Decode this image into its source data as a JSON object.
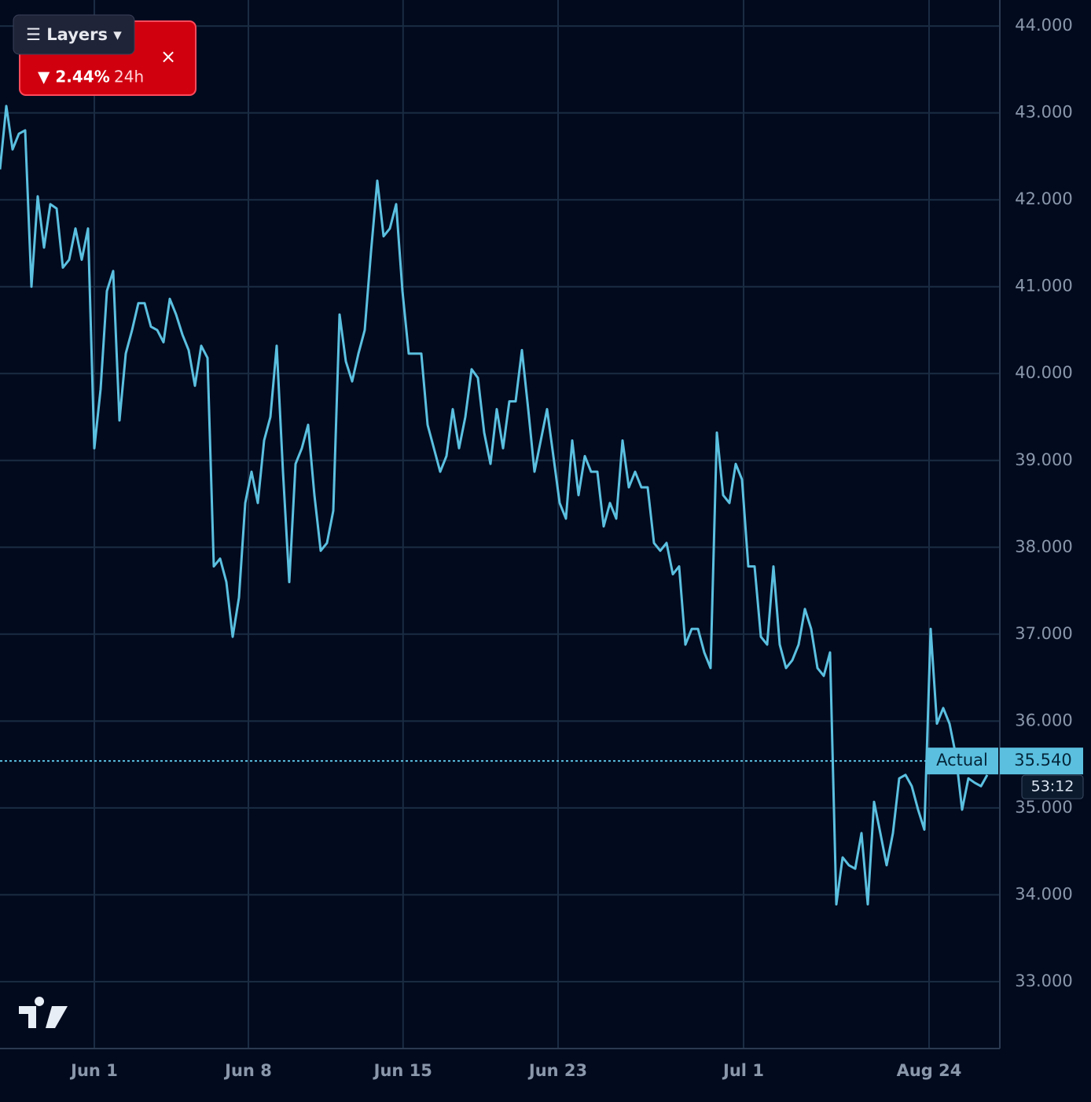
{
  "chart_data": {
    "type": "line",
    "color": "#5bc0e0",
    "values": [
      42.35,
      43.08,
      42.58,
      42.76,
      42.8,
      41.0,
      42.04,
      41.45,
      41.95,
      41.9,
      41.22,
      41.31,
      41.67,
      41.31,
      41.67,
      39.14,
      39.82,
      40.95,
      41.18,
      39.46,
      40.23,
      40.5,
      40.81,
      40.81,
      40.54,
      40.5,
      40.36,
      40.86,
      40.68,
      40.45,
      40.27,
      39.86,
      40.32,
      40.18,
      37.78,
      37.87,
      37.6,
      36.97,
      37.42,
      38.51,
      38.87,
      38.51,
      39.23,
      39.5,
      40.32,
      38.87,
      37.6,
      38.96,
      39.14,
      39.41,
      38.6,
      37.96,
      38.05,
      38.42,
      40.68,
      40.14,
      39.91,
      40.23,
      40.5,
      41.4,
      42.22,
      41.58,
      41.67,
      41.95,
      40.95,
      40.23,
      40.23,
      40.23,
      39.41,
      39.14,
      38.87,
      39.05,
      39.59,
      39.14,
      39.5,
      40.05,
      39.95,
      39.32,
      38.96,
      39.59,
      39.14,
      39.68,
      39.68,
      40.27,
      39.59,
      38.87,
      39.23,
      39.59,
      39.05,
      38.51,
      38.33,
      39.23,
      38.6,
      39.05,
      38.87,
      38.87,
      38.24,
      38.51,
      38.33,
      39.23,
      38.69,
      38.87,
      38.69,
      38.69,
      38.05,
      37.96,
      38.05,
      37.69,
      37.78,
      36.88,
      37.06,
      37.06,
      36.79,
      36.61,
      39.32,
      38.6,
      38.51,
      38.96,
      38.78,
      37.78,
      37.78,
      36.97,
      36.88,
      37.78,
      36.88,
      36.61,
      36.7,
      36.88,
      37.29,
      37.06,
      36.61,
      36.52,
      36.79,
      33.89,
      34.43,
      34.34,
      34.3,
      34.71,
      33.89,
      35.07,
      34.71,
      34.34,
      34.71,
      35.34,
      35.38,
      35.25,
      34.98,
      34.75,
      37.06,
      35.97,
      36.15,
      35.97,
      35.61,
      34.98,
      35.34,
      35.29,
      35.25,
      35.38
    ],
    "xlim": [
      0,
      159
    ],
    "xticks": [
      {
        "value": 15,
        "label": "Jun 1"
      },
      {
        "value": 39.5,
        "label": "Jun 8"
      },
      {
        "value": 64.1,
        "label": "Jun 15"
      },
      {
        "value": 88.75,
        "label": "Jun 23"
      },
      {
        "value": 118.25,
        "label": "Jul 1"
      },
      {
        "value": 147.75,
        "label": "Aug 24"
      }
    ],
    "ylim": [
      32.23,
      44.3
    ],
    "yticks": [
      {
        "value": 33,
        "label": "33.000"
      },
      {
        "value": 34,
        "label": "34.000"
      },
      {
        "value": 35,
        "label": "35.000"
      },
      {
        "value": 36,
        "label": "36.000"
      },
      {
        "value": 37,
        "label": "37.000"
      },
      {
        "value": 38,
        "label": "38.000"
      },
      {
        "value": 39,
        "label": "39.000"
      },
      {
        "value": 40,
        "label": "40.000"
      },
      {
        "value": 41,
        "label": "41.000"
      },
      {
        "value": 42,
        "label": "42.000"
      },
      {
        "value": 43,
        "label": "43.000"
      },
      {
        "value": 44,
        "label": "44.000"
      }
    ],
    "grid": true,
    "current_price": {
      "value": 35.54,
      "label": "35.540"
    },
    "price_tag": "Actual",
    "countdown": "53:12"
  },
  "badge": {
    "change": "▼ 2.44%",
    "period": "24h",
    "close": "×"
  },
  "layers_button": "☰ Layers ▾"
}
